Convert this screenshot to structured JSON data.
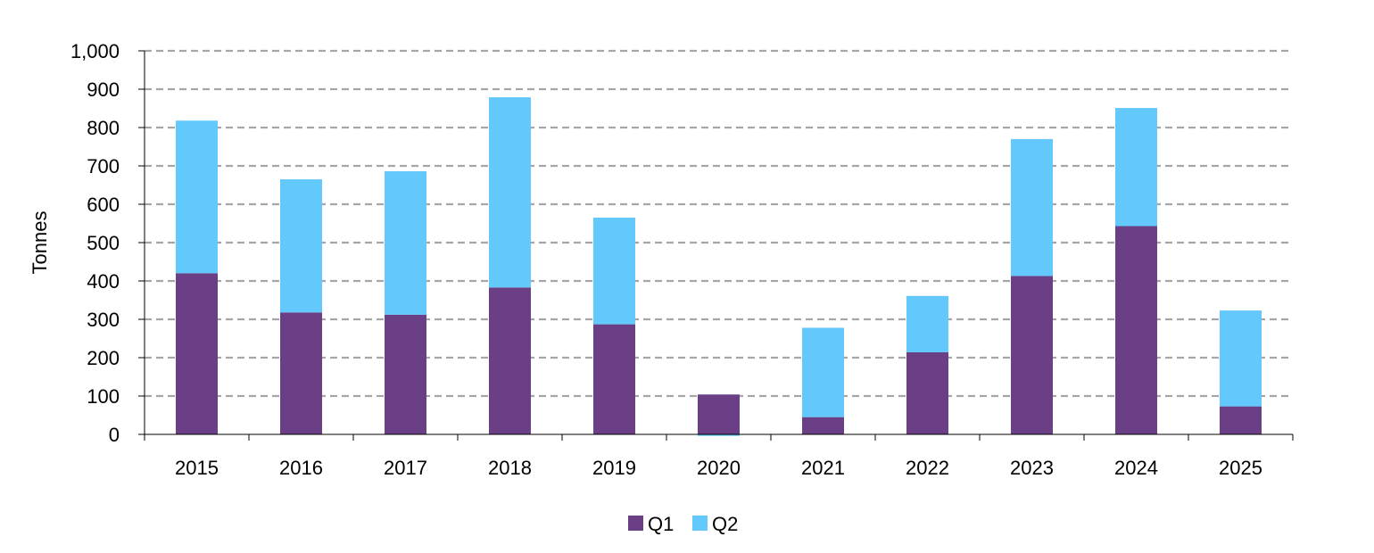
{
  "chart_data": {
    "type": "bar",
    "stacked": true,
    "categories": [
      "2015",
      "2016",
      "2017",
      "2018",
      "2019",
      "2020",
      "2021",
      "2022",
      "2023",
      "2024",
      "2025"
    ],
    "series": [
      {
        "name": "Q1",
        "color": "#6b3f86",
        "values": [
          420,
          318,
          312,
          383,
          287,
          104,
          45,
          214,
          413,
          543,
          73
        ]
      },
      {
        "name": "Q2",
        "color": "#63c8fb",
        "values": [
          398,
          347,
          374,
          496,
          278,
          -4,
          233,
          147,
          357,
          308,
          250
        ]
      }
    ],
    "title": "",
    "xlabel": "",
    "ylabel": "Tonnes",
    "ylim": [
      0,
      1000
    ],
    "yticks": [
      0,
      100,
      200,
      300,
      400,
      500,
      600,
      700,
      800,
      900,
      1000
    ],
    "ytick_labels": [
      "0",
      "100",
      "200",
      "300",
      "400",
      "500",
      "600",
      "700",
      "800",
      "900",
      "1,000"
    ],
    "grid": true,
    "legend_position": "bottom"
  }
}
